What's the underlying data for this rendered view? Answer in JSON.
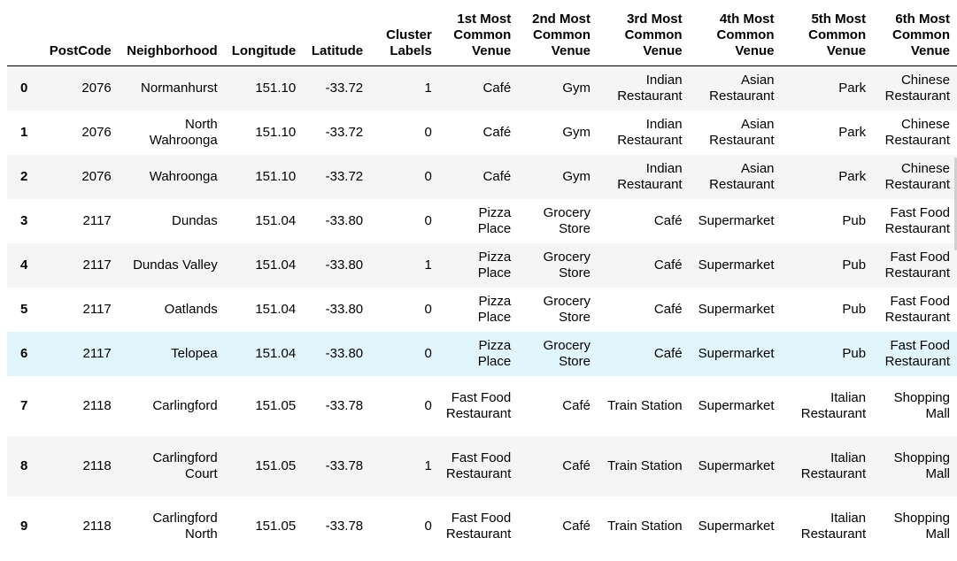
{
  "columns": {
    "index": "",
    "postcode": "PostCode",
    "neighborhood": "Neighborhood",
    "longitude": "Longitude",
    "latitude": "Latitude",
    "cluster": "Cluster Labels",
    "v1": "1st Most Common Venue",
    "v2": "2nd Most Common Venue",
    "v3": "3rd Most Common Venue",
    "v4": "4th Most Common Venue",
    "v5": "5th Most Common Venue",
    "v6": "6th Most Common Venue"
  },
  "rows": [
    {
      "index": "0",
      "postcode": "2076",
      "neighborhood": "Normanhurst",
      "longitude": "151.10",
      "latitude": "-33.72",
      "cluster": "1",
      "v1": "Café",
      "v2": "Gym",
      "v3": "Indian Restaurant",
      "v4": "Asian Restaurant",
      "v5": "Park",
      "v6": "Chinese Restaurant"
    },
    {
      "index": "1",
      "postcode": "2076",
      "neighborhood": "North Wahroonga",
      "longitude": "151.10",
      "latitude": "-33.72",
      "cluster": "0",
      "v1": "Café",
      "v2": "Gym",
      "v3": "Indian Restaurant",
      "v4": "Asian Restaurant",
      "v5": "Park",
      "v6": "Chinese Restaurant"
    },
    {
      "index": "2",
      "postcode": "2076",
      "neighborhood": "Wahroonga",
      "longitude": "151.10",
      "latitude": "-33.72",
      "cluster": "0",
      "v1": "Café",
      "v2": "Gym",
      "v3": "Indian Restaurant",
      "v4": "Asian Restaurant",
      "v5": "Park",
      "v6": "Chinese Restaurant"
    },
    {
      "index": "3",
      "postcode": "2117",
      "neighborhood": "Dundas",
      "longitude": "151.04",
      "latitude": "-33.80",
      "cluster": "0",
      "v1": "Pizza Place",
      "v2": "Grocery Store",
      "v3": "Café",
      "v4": "Supermarket",
      "v5": "Pub",
      "v6": "Fast Food Restaurant"
    },
    {
      "index": "4",
      "postcode": "2117",
      "neighborhood": "Dundas Valley",
      "longitude": "151.04",
      "latitude": "-33.80",
      "cluster": "1",
      "v1": "Pizza Place",
      "v2": "Grocery Store",
      "v3": "Café",
      "v4": "Supermarket",
      "v5": "Pub",
      "v6": "Fast Food Restaurant"
    },
    {
      "index": "5",
      "postcode": "2117",
      "neighborhood": "Oatlands",
      "longitude": "151.04",
      "latitude": "-33.80",
      "cluster": "0",
      "v1": "Pizza Place",
      "v2": "Grocery Store",
      "v3": "Café",
      "v4": "Supermarket",
      "v5": "Pub",
      "v6": "Fast Food Restaurant"
    },
    {
      "index": "6",
      "postcode": "2117",
      "neighborhood": "Telopea",
      "longitude": "151.04",
      "latitude": "-33.80",
      "cluster": "0",
      "v1": "Pizza Place",
      "v2": "Grocery Store",
      "v3": "Café",
      "v4": "Supermarket",
      "v5": "Pub",
      "v6": "Fast Food Restaurant"
    },
    {
      "index": "7",
      "postcode": "2118",
      "neighborhood": "Carlingford",
      "longitude": "151.05",
      "latitude": "-33.78",
      "cluster": "0",
      "v1": "Fast Food Restaurant",
      "v2": "Café",
      "v3": "Train Station",
      "v4": "Supermarket",
      "v5": "Italian Restaurant",
      "v6": "Shopping Mall"
    },
    {
      "index": "8",
      "postcode": "2118",
      "neighborhood": "Carlingford Court",
      "longitude": "151.05",
      "latitude": "-33.78",
      "cluster": "1",
      "v1": "Fast Food Restaurant",
      "v2": "Café",
      "v3": "Train Station",
      "v4": "Supermarket",
      "v5": "Italian Restaurant",
      "v6": "Shopping Mall"
    },
    {
      "index": "9",
      "postcode": "2118",
      "neighborhood": "Carlingford North",
      "longitude": "151.05",
      "latitude": "-33.78",
      "cluster": "0",
      "v1": "Fast Food Restaurant",
      "v2": "Café",
      "v3": "Train Station",
      "v4": "Supermarket",
      "v5": "Italian Restaurant",
      "v6": "Shopping Mall"
    }
  ],
  "colors": {
    "hover_row": "#e1f5fd",
    "striped_row": "#f5f5f5",
    "header_rule": "#000000"
  },
  "state": {
    "hovered_row_index": "6"
  }
}
